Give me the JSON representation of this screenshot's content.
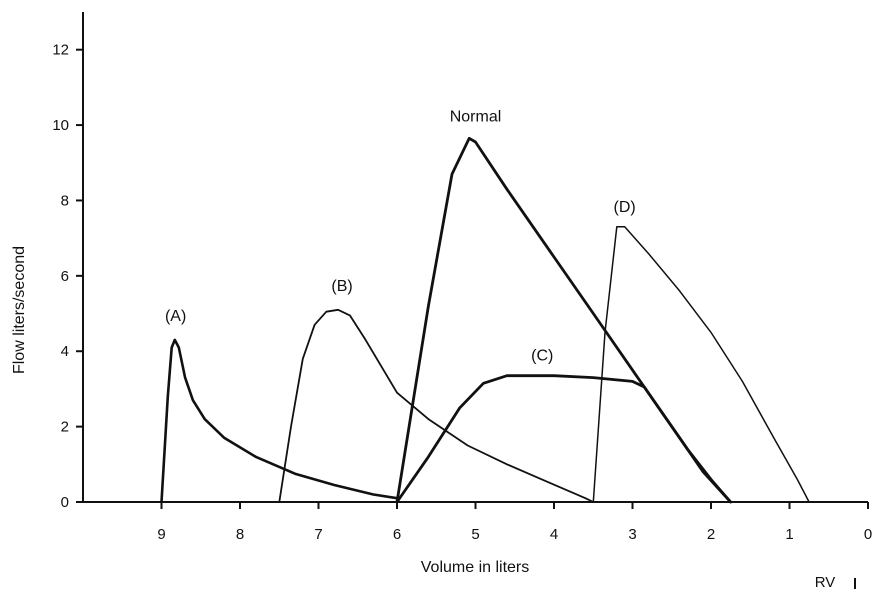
{
  "chart_data": {
    "type": "line",
    "xlabel": "Volume in liters",
    "ylabel": "Flow liters/second",
    "xlim": [
      10,
      0
    ],
    "ylim": [
      0,
      13
    ],
    "x_ticks": [
      9,
      8,
      7,
      6,
      5,
      4,
      3,
      2,
      1,
      0
    ],
    "y_ticks": [
      0,
      2,
      4,
      6,
      8,
      10,
      12
    ],
    "x_reversed": true,
    "grid": false,
    "rv_marker": "RV",
    "series": [
      {
        "name": "(A)",
        "x": [
          9.0,
          8.92,
          8.87,
          8.83,
          8.78,
          8.7,
          8.6,
          8.45,
          8.2,
          7.8,
          7.3,
          6.8,
          6.3,
          6.0
        ],
        "y": [
          0,
          2.8,
          4.1,
          4.3,
          4.1,
          3.3,
          2.7,
          2.2,
          1.7,
          1.2,
          0.75,
          0.45,
          0.2,
          0.1
        ]
      },
      {
        "name": "(B)",
        "x": [
          7.5,
          7.35,
          7.2,
          7.05,
          6.9,
          6.75,
          6.6,
          6.4,
          6.2,
          6.0,
          5.6,
          5.1,
          4.6,
          4.1,
          3.6,
          3.5
        ],
        "y": [
          0,
          2.0,
          3.8,
          4.7,
          5.05,
          5.1,
          4.95,
          4.3,
          3.6,
          2.9,
          2.2,
          1.5,
          1.0,
          0.55,
          0.1,
          0.0
        ]
      },
      {
        "name": "Normal",
        "x": [
          6.0,
          5.6,
          5.3,
          5.08,
          5.0,
          4.6,
          4.0,
          3.5,
          3.0,
          2.5,
          2.1,
          1.75
        ],
        "y": [
          0,
          5.2,
          8.7,
          9.65,
          9.55,
          8.3,
          6.5,
          5.0,
          3.5,
          2.0,
          0.8,
          0.0
        ]
      },
      {
        "name": "(C)",
        "x": [
          6.0,
          5.6,
          5.2,
          4.9,
          4.6,
          4.0,
          3.5,
          3.0,
          2.85,
          2.6,
          2.3,
          2.0,
          1.75
        ],
        "y": [
          0.0,
          1.2,
          2.5,
          3.15,
          3.35,
          3.35,
          3.3,
          3.2,
          3.05,
          2.3,
          1.4,
          0.6,
          0.0
        ]
      },
      {
        "name": "(D)",
        "x": [
          3.5,
          3.35,
          3.2,
          3.1,
          2.8,
          2.4,
          2.0,
          1.6,
          1.2,
          0.9,
          0.75
        ],
        "y": [
          0,
          4.5,
          7.3,
          7.3,
          6.6,
          5.6,
          4.5,
          3.2,
          1.7,
          0.6,
          0.0
        ]
      }
    ],
    "labels": [
      {
        "text": "(A)",
        "x": 8.82,
        "y": 4.8
      },
      {
        "text": "(B)",
        "x": 6.7,
        "y": 5.6
      },
      {
        "text": "Normal",
        "x": 5.0,
        "y": 10.1
      },
      {
        "text": "(C)",
        "x": 4.15,
        "y": 3.75
      },
      {
        "text": "(D)",
        "x": 3.1,
        "y": 7.7
      }
    ]
  }
}
